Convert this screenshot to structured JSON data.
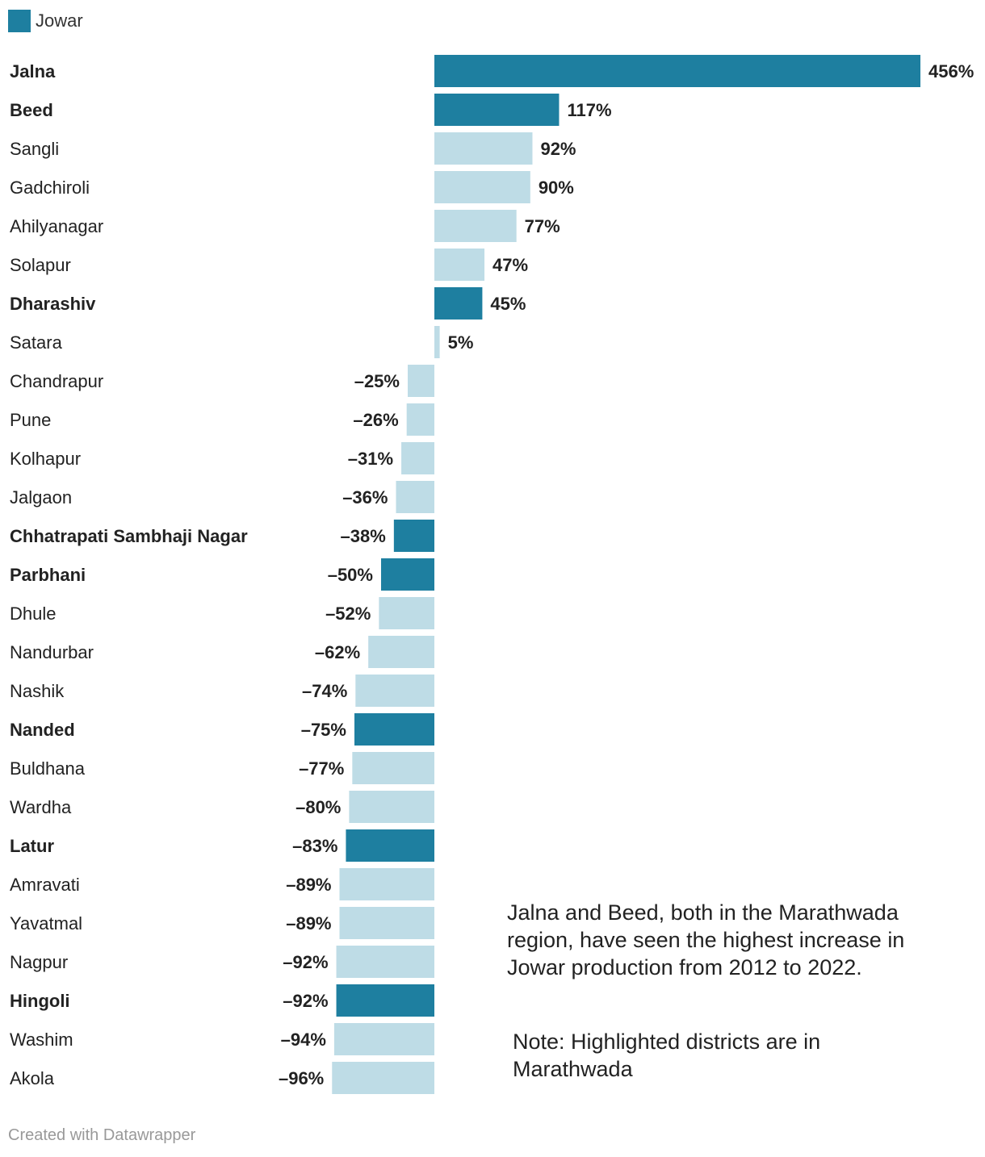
{
  "legend": {
    "label": "Jowar",
    "color": "#1e7fa0"
  },
  "colors": {
    "highlight": "#1e7fa0",
    "other": "#bedce6",
    "text": "#222222"
  },
  "chart_data": {
    "type": "bar",
    "orientation": "horizontal",
    "title": "",
    "xlabel": "",
    "ylabel": "",
    "value_suffix": "%",
    "xlim": [
      -96,
      456
    ],
    "grid": false,
    "legend_position": "top-left",
    "categories": [
      "Jalna",
      "Beed",
      "Sangli",
      "Gadchiroli",
      "Ahilyanagar",
      "Solapur",
      "Dharashiv",
      "Satara",
      "Chandrapur",
      "Pune",
      "Kolhapur",
      "Jalgaon",
      "Chhatrapati Sambhaji Nagar",
      "Parbhani",
      "Dhule",
      "Nandurbar",
      "Nashik",
      "Nanded",
      "Buldhana",
      "Wardha",
      "Latur",
      "Amravati",
      "Yavatmal",
      "Nagpur",
      "Hingoli",
      "Washim",
      "Akola"
    ],
    "values": [
      456,
      117,
      92,
      90,
      77,
      47,
      45,
      5,
      -25,
      -26,
      -31,
      -36,
      -38,
      -50,
      -52,
      -62,
      -74,
      -75,
      -77,
      -80,
      -83,
      -89,
      -89,
      -92,
      -92,
      -94,
      -96
    ],
    "labels": [
      "456%",
      "117%",
      "92%",
      "90%",
      "77%",
      "47%",
      "45%",
      "5%",
      "–25%",
      "–26%",
      "–31%",
      "–36%",
      "–38%",
      "–50%",
      "–52%",
      "–62%",
      "–74%",
      "–75%",
      "–77%",
      "–80%",
      "–83%",
      "–89%",
      "–89%",
      "–92%",
      "–92%",
      "–94%",
      "–96%"
    ],
    "highlighted": [
      "Jalna",
      "Beed",
      "Dharashiv",
      "Chhatrapati Sambhaji Nagar",
      "Parbhani",
      "Nanded",
      "Latur",
      "Hingoli"
    ],
    "series": [
      {
        "name": "Jowar"
      }
    ]
  },
  "annotations": {
    "main": "Jalna and Beed, both in the Marathwada region, have seen the highest increase in Jowar production from 2012 to 2022.",
    "note": "Note: Highlighted districts are in Marathwada"
  },
  "footer": "Created with Datawrapper"
}
